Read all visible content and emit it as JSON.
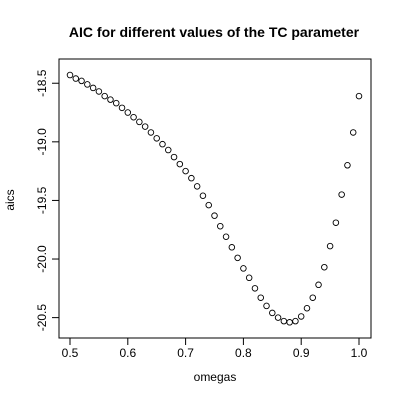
{
  "chart_data": {
    "type": "scatter",
    "title": "AIC for different values of the TC parameter",
    "xlabel": "omegas",
    "ylabel": "aics",
    "xlim": [
      0.5,
      1.0
    ],
    "ylim": [
      -20.58,
      -18.37
    ],
    "xticks": [
      0.5,
      0.6,
      0.7,
      0.8,
      0.9,
      1.0
    ],
    "xtick_labels": [
      "0.5",
      "0.6",
      "0.7",
      "0.8",
      "0.9",
      "1.0"
    ],
    "yticks": [
      -18.5,
      -19.0,
      -19.5,
      -20.0,
      -20.5
    ],
    "ytick_labels": [
      "-18.5",
      "-19.0",
      "-19.5",
      "-20.0",
      "-20.5"
    ],
    "grid": false,
    "legend": false,
    "marker": "open-circle",
    "series": [
      {
        "x": [
          0.5,
          0.51,
          0.52,
          0.53,
          0.54,
          0.55,
          0.56,
          0.57,
          0.58,
          0.59,
          0.6,
          0.61,
          0.62,
          0.63,
          0.64,
          0.65,
          0.66,
          0.67,
          0.68,
          0.69,
          0.7,
          0.71,
          0.72,
          0.73,
          0.74,
          0.75,
          0.76,
          0.77,
          0.78,
          0.79,
          0.8,
          0.81,
          0.82,
          0.83,
          0.84,
          0.85,
          0.86,
          0.87,
          0.88,
          0.89,
          0.9,
          0.91,
          0.92,
          0.93,
          0.94,
          0.95,
          0.96,
          0.97,
          0.98,
          0.99,
          1.0
        ],
        "y": [
          -18.43,
          -18.46,
          -18.48,
          -18.51,
          -18.54,
          -18.57,
          -18.61,
          -18.64,
          -18.67,
          -18.71,
          -18.75,
          -18.79,
          -18.83,
          -18.87,
          -18.92,
          -18.97,
          -19.02,
          -19.07,
          -19.13,
          -19.19,
          -19.25,
          -19.31,
          -19.38,
          -19.46,
          -19.54,
          -19.63,
          -19.72,
          -19.81,
          -19.9,
          -19.99,
          -20.08,
          -20.16,
          -20.25,
          -20.33,
          -20.4,
          -20.46,
          -20.5,
          -20.53,
          -20.54,
          -20.53,
          -20.49,
          -20.42,
          -20.33,
          -20.22,
          -20.07,
          -19.89,
          -19.69,
          -19.45,
          -19.2,
          -18.92,
          -18.61
        ]
      }
    ]
  }
}
